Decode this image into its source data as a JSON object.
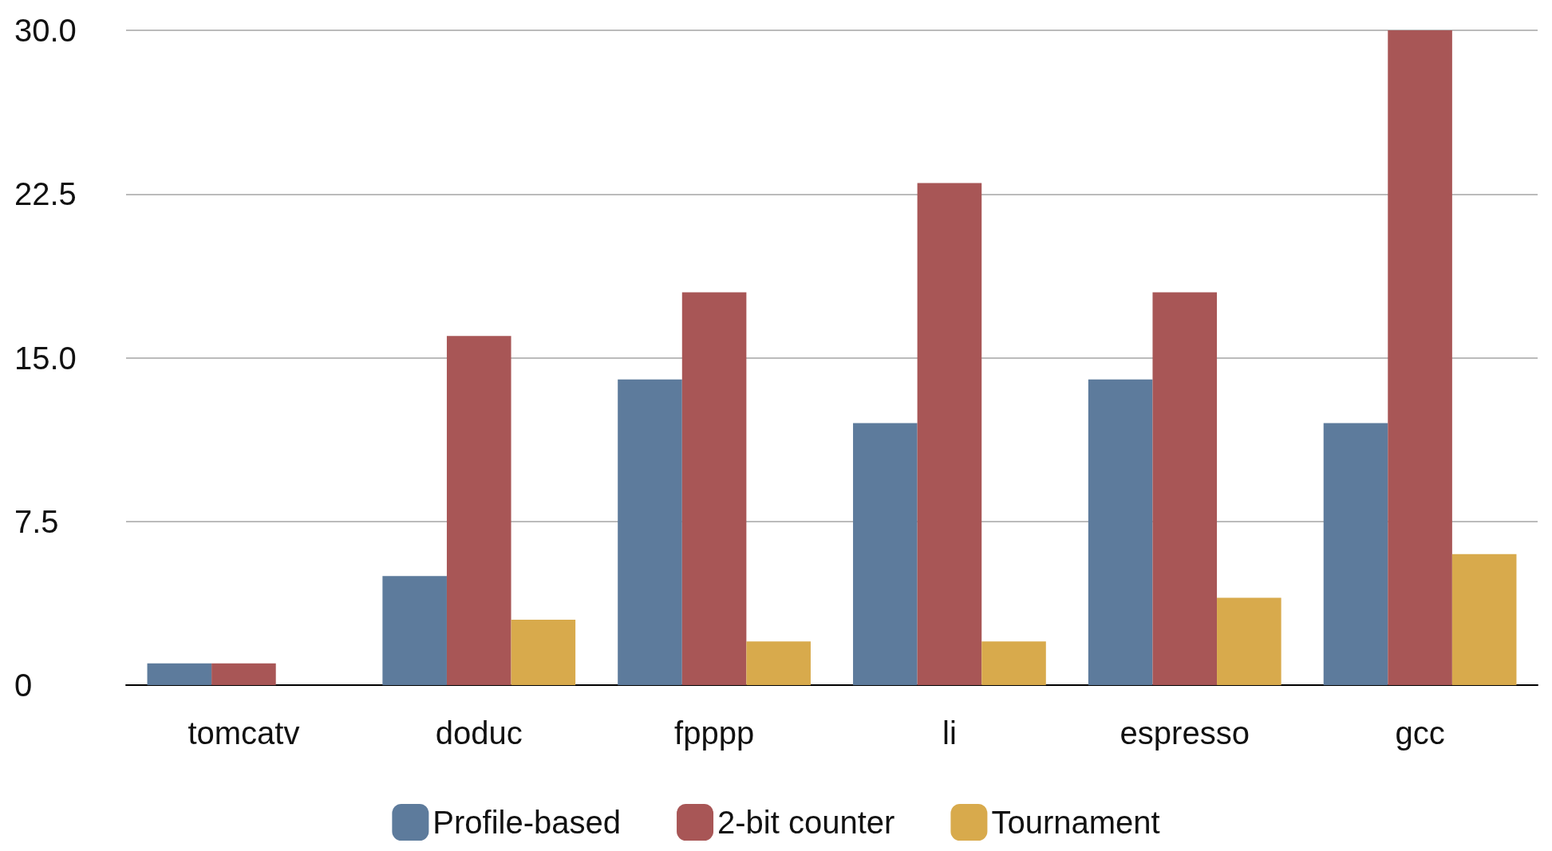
{
  "chart_data": {
    "type": "bar",
    "categories": [
      "tomcatv",
      "doduc",
      "fpppp",
      "li",
      "espresso",
      "gcc"
    ],
    "series": [
      {
        "name": "Profile-based",
        "color": "#5d7b9c",
        "values": [
          1,
          5,
          14,
          12,
          14,
          12
        ]
      },
      {
        "name": "2-bit counter",
        "color": "#a85656",
        "values": [
          1,
          16,
          18,
          23,
          18,
          30
        ]
      },
      {
        "name": "Tournament",
        "color": "#d8aa4c",
        "values": [
          0,
          3,
          2,
          2,
          4,
          6
        ]
      }
    ],
    "ylim": [
      0,
      30
    ],
    "yticks": [
      {
        "value": 0,
        "label": "0"
      },
      {
        "value": 7.5,
        "label": "7.5"
      },
      {
        "value": 15,
        "label": "15.0"
      },
      {
        "value": 22.5,
        "label": "22.5"
      },
      {
        "value": 30,
        "label": "30.0"
      }
    ],
    "grid": "y",
    "legend": "bottom"
  }
}
